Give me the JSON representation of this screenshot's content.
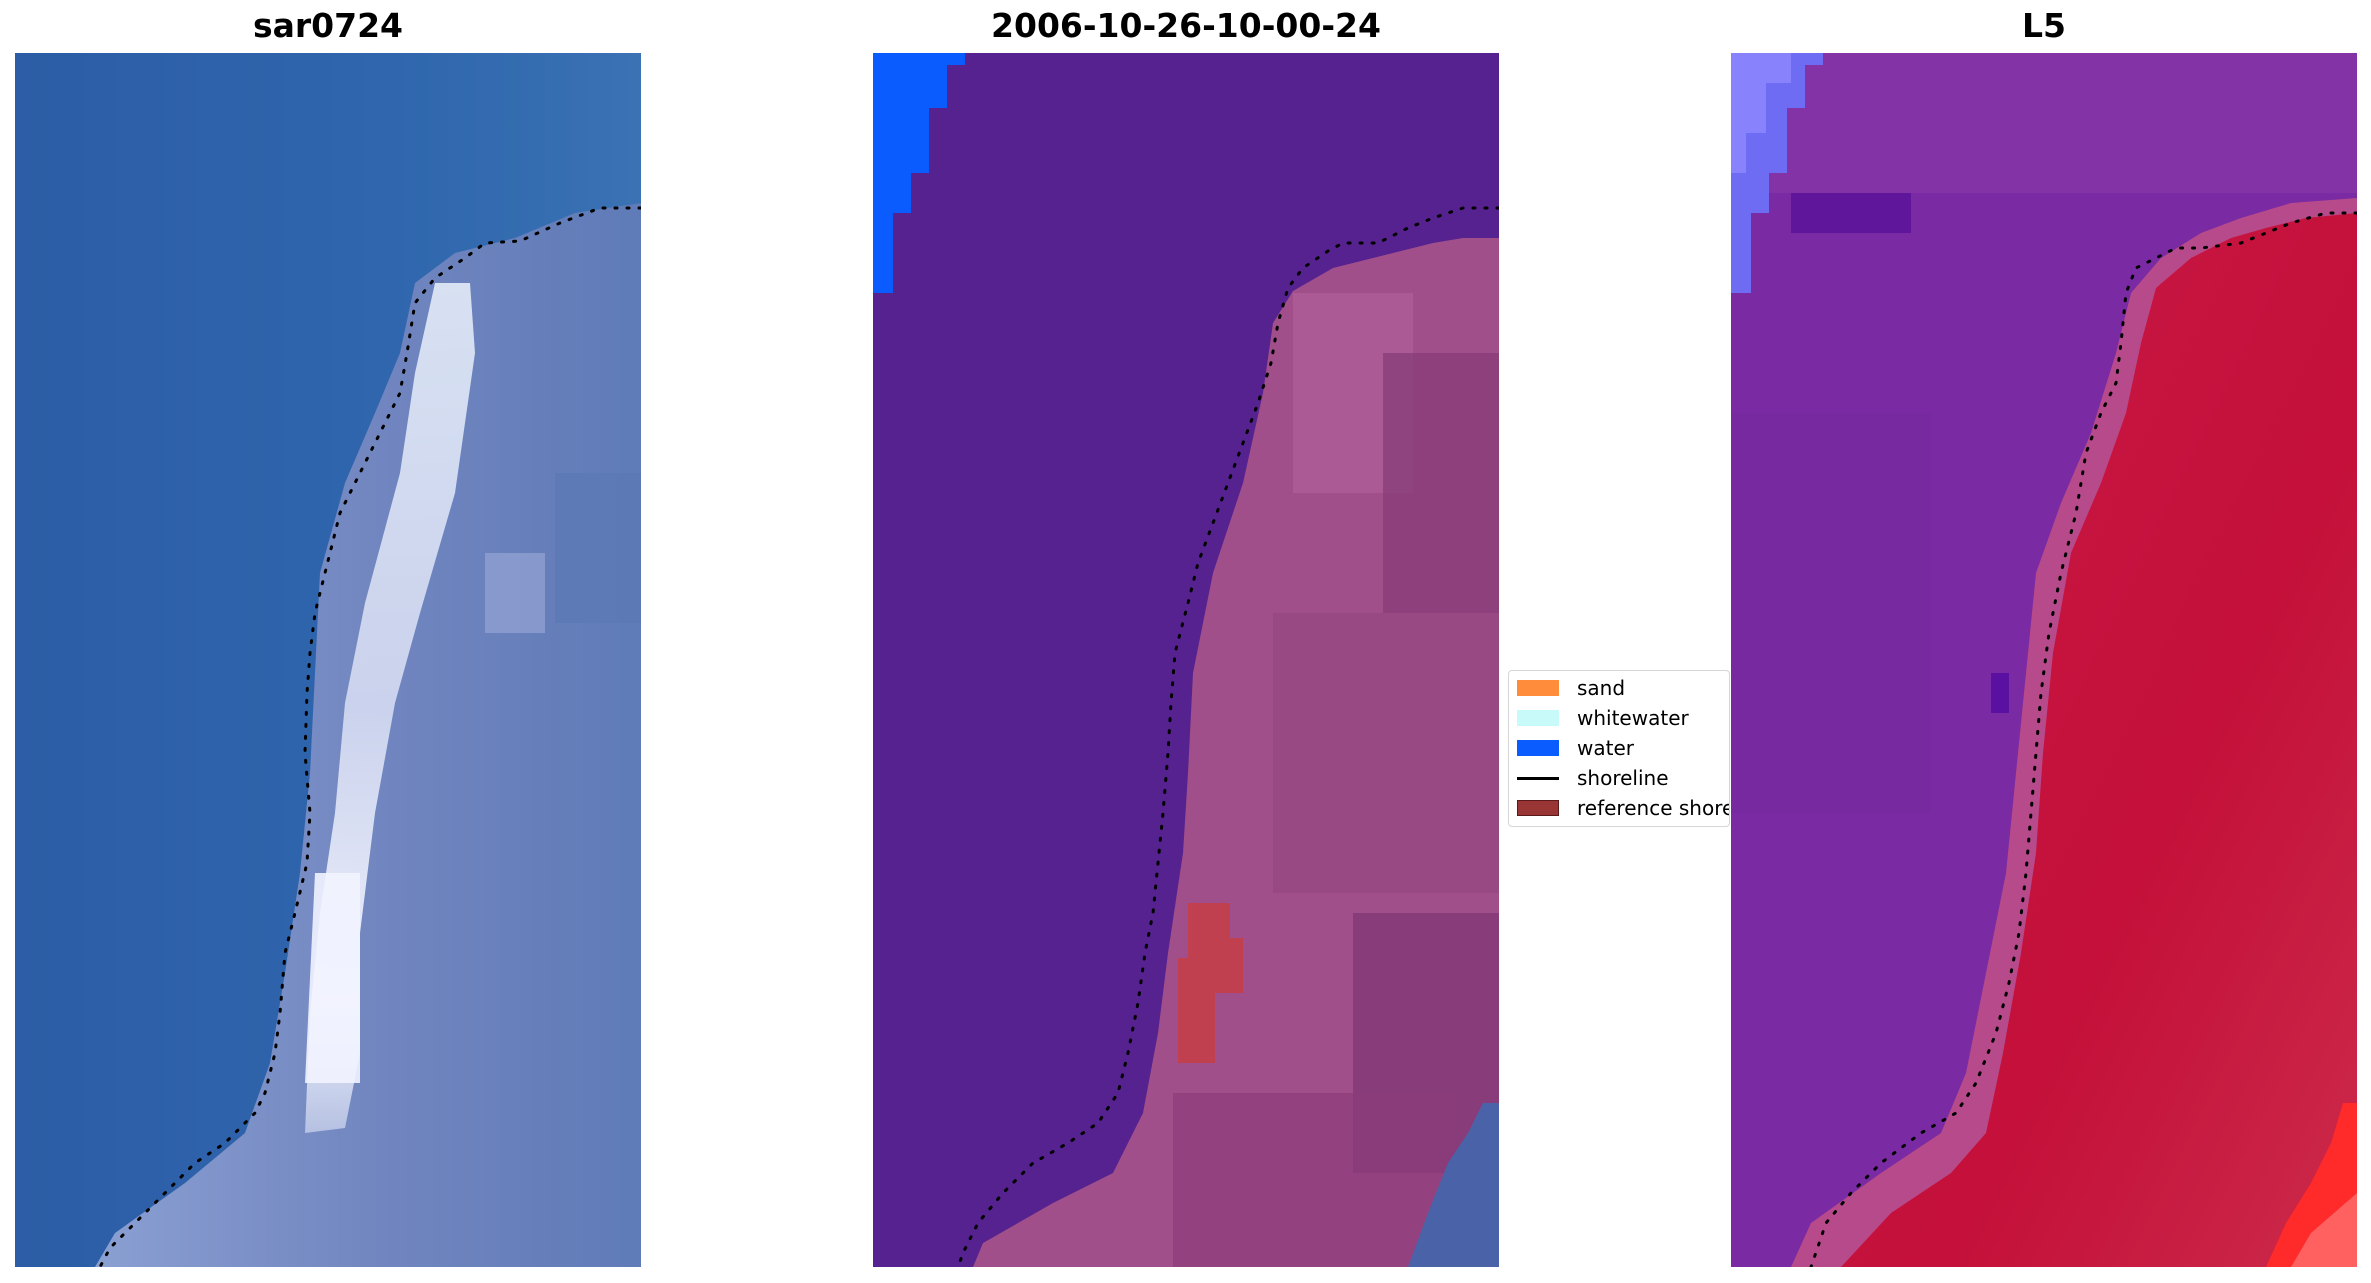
{
  "panels": [
    {
      "title": "sar0724"
    },
    {
      "title": "2006-10-26-10-00-24"
    },
    {
      "title": "L5"
    }
  ],
  "legend": {
    "entries": [
      {
        "label": "sand",
        "kind": "patch",
        "color": "#ff8c3a"
      },
      {
        "label": "whitewater",
        "kind": "patch",
        "color": "#c8fafa"
      },
      {
        "label": "water",
        "kind": "patch",
        "color": "#0a5cff"
      },
      {
        "label": "shoreline",
        "kind": "line",
        "color": "#000000"
      },
      {
        "label": "reference shoreline",
        "kind": "patch",
        "color": "#9a3535"
      }
    ]
  },
  "colors": {
    "sea_blue": "#2d62a8",
    "surf_white": "#e8ecf8",
    "land_lavender": "#7f8ec4",
    "classified_water_purple": "#56228f",
    "classified_land_mauve": "#a04f8a",
    "water_blue": "#0a5cff",
    "index_purple": "#7a2aa3",
    "index_red": "#c8103c"
  }
}
